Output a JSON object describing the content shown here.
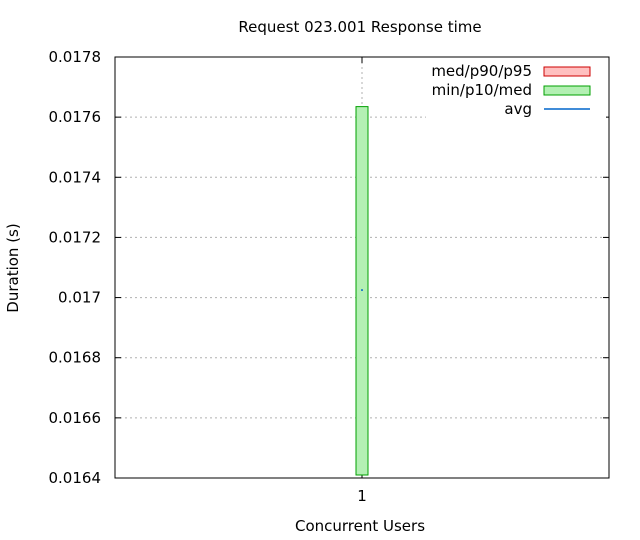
{
  "chart_data": {
    "type": "box",
    "title": "Request 023.001 Response time",
    "xlabel": "Concurrent Users",
    "ylabel": "Duration (s)",
    "ylim": [
      0.0164,
      0.0178
    ],
    "yticks": [
      "0.0164",
      "0.0166",
      "0.0168",
      "0.017",
      "0.0172",
      "0.0174",
      "0.0176",
      "0.0178"
    ],
    "xlim": [
      0,
      2
    ],
    "categories": [
      "1"
    ],
    "grid": true,
    "legend_position": "top-right",
    "legend": [
      {
        "name": "med/p90/p95",
        "kind": "box",
        "fill": "#ffc0c0",
        "stroke": "#cc0000"
      },
      {
        "name": "min/p10/med",
        "kind": "box",
        "fill": "#b3f0b3",
        "stroke": "#00a000"
      },
      {
        "name": "avg",
        "kind": "line",
        "stroke": "#0066cc"
      }
    ],
    "series": [
      {
        "name": "min/p10/med",
        "x": 1,
        "low": 0.01641,
        "high": 0.017635
      },
      {
        "name": "avg",
        "x": 1,
        "value": 0.017025
      }
    ]
  }
}
